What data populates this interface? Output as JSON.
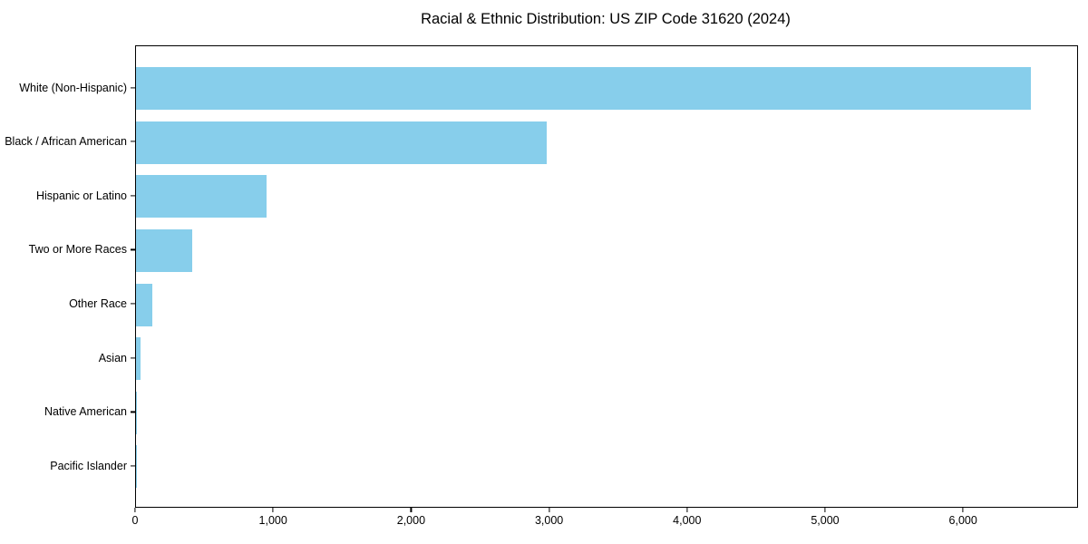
{
  "title": "Racial & Ethnic Distribution: US ZIP Code 31620 (2024)",
  "chart_data": {
    "type": "bar",
    "orientation": "horizontal",
    "title": "Racial & Ethnic Distribution: US ZIP Code 31620 (2024)",
    "xlabel": "",
    "ylabel": "",
    "categories": [
      "White (Non-Hispanic)",
      "Black / African American",
      "Hispanic or Latino",
      "Two or More Races",
      "Other Race",
      "Asian",
      "Native American",
      "Pacific Islander"
    ],
    "values": [
      6486,
      2977,
      944,
      407,
      116,
      31,
      5,
      2
    ],
    "xlim": [
      0,
      6820
    ],
    "x_ticks": [
      0,
      1000,
      2000,
      3000,
      4000,
      5000,
      6000
    ],
    "x_tick_labels": [
      "0",
      "1,000",
      "2,000",
      "3,000",
      "4,000",
      "5,000",
      "6,000"
    ],
    "grid": false,
    "legend": null,
    "bar_color": "#87CEEB",
    "frame_color": "#000000",
    "text_color": "#000000",
    "background_color": "#ffffff"
  }
}
